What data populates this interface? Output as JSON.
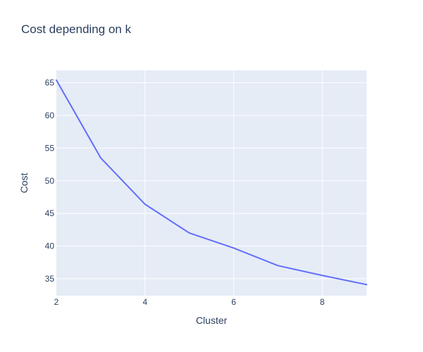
{
  "chart_data": {
    "type": "line",
    "title": "Cost depending on k",
    "xlabel": "Cluster",
    "ylabel": "Cost",
    "x": [
      2,
      3,
      4,
      5,
      6,
      7,
      8,
      9
    ],
    "series": [
      {
        "values": [
          65.4,
          53.5,
          46.4,
          42.0,
          39.7,
          37.0,
          35.5,
          34.1
        ],
        "color": "#636efa"
      }
    ],
    "xlim": [
      2,
      9
    ],
    "ylim": [
      32.4,
      66.9
    ],
    "xticks": [
      2,
      4,
      6,
      8
    ],
    "yticks": [
      35,
      40,
      45,
      50,
      55,
      60,
      65
    ],
    "grid": true,
    "legend": "none",
    "colors": {
      "plot_background": "#e5ecf6",
      "grid": "#ffffff",
      "text": "#2a3f5f",
      "line": "#636efa"
    }
  }
}
